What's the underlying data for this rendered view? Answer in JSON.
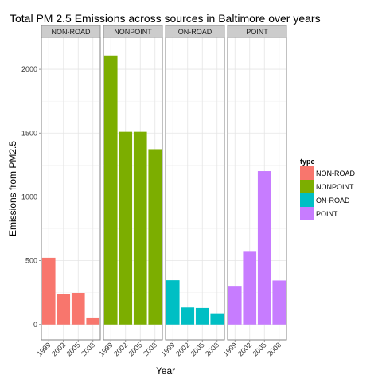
{
  "chart_data": {
    "type": "bar",
    "title": "Total PM 2.5 Emissions across sources in Baltimore over years",
    "xlabel": "Year",
    "ylabel": "Emissions from PM2.5",
    "ylim": [
      -120,
      2250
    ],
    "yticks": [
      0,
      500,
      1000,
      1500,
      2000
    ],
    "categories": [
      "1999",
      "2002",
      "2005",
      "2008"
    ],
    "grid": true,
    "legend": {
      "title": "type",
      "placement": "right"
    },
    "facets": [
      {
        "label": "NON-ROAD",
        "color": "#F8766D",
        "values": [
          523,
          241,
          248,
          55
        ]
      },
      {
        "label": "NONPOINT",
        "color": "#7CAE00",
        "values": [
          2108,
          1510,
          1510,
          1374
        ]
      },
      {
        "label": "ON-ROAD",
        "color": "#00BFC4",
        "values": [
          347,
          134,
          130,
          88
        ]
      },
      {
        "label": "POINT",
        "color": "#C77CFF",
        "values": [
          297,
          570,
          1202,
          345
        ]
      }
    ]
  }
}
